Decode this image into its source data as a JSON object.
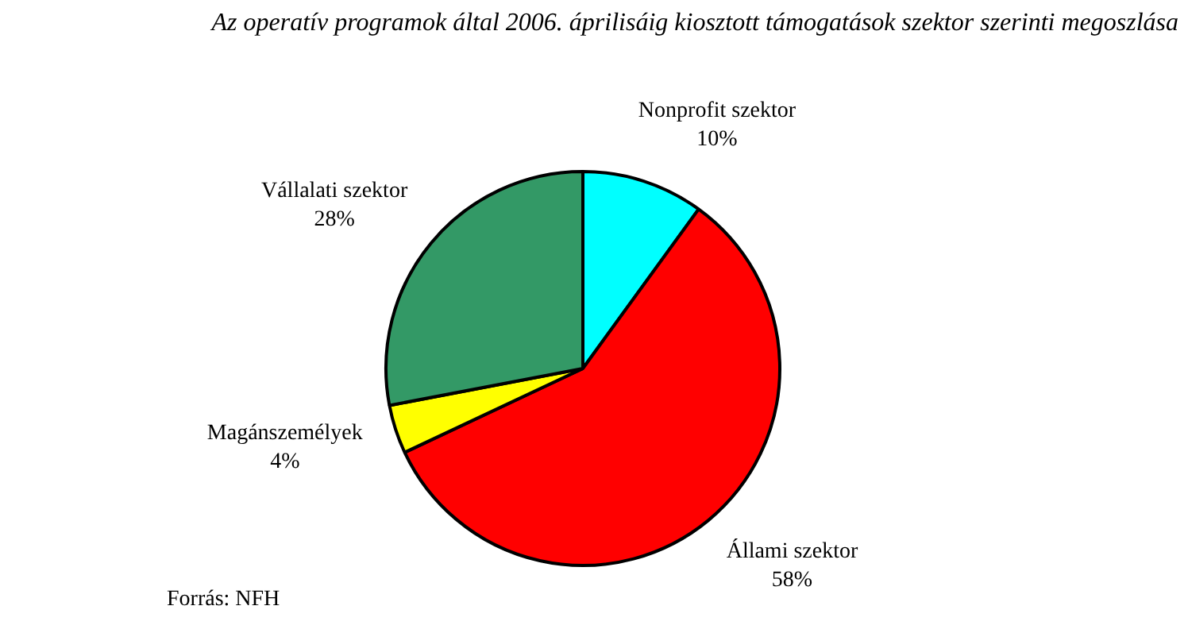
{
  "chart_data": {
    "type": "pie",
    "title": "Az operatív programok által 2006. áprilisáig kiosztott támogatások szektor szerinti megoszlása",
    "categories": [
      "Nonprofit szektor",
      "Állami szektor",
      "Magánszemélyek",
      "Vállalati szektor"
    ],
    "values": [
      10,
      58,
      4,
      28
    ],
    "colors": [
      "#00ffff",
      "#ff0000",
      "#ffff00",
      "#339966"
    ],
    "value_labels": [
      "10%",
      "58%",
      "4%",
      "28%"
    ],
    "legend": false,
    "annotations": [
      "Forrás: NFH"
    ]
  }
}
